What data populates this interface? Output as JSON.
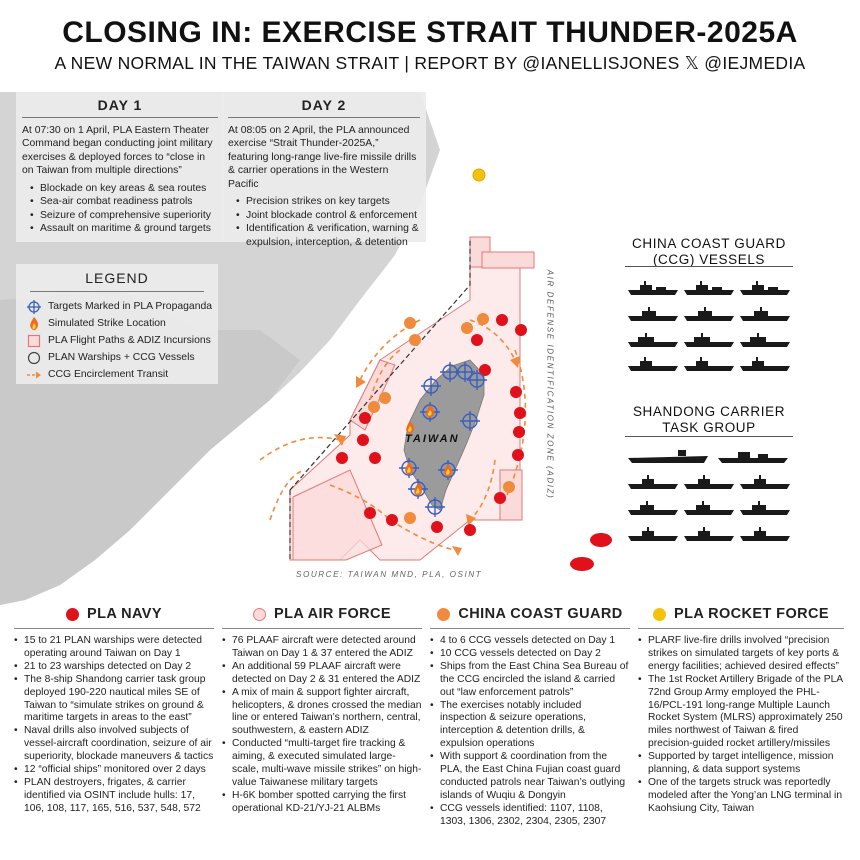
{
  "header": {
    "title": "CLOSING IN: EXERCISE STRAIT THUNDER-2025A",
    "subtitle": "A NEW NORMAL IN THE TAIWAN STRAIT | REPORT BY @IANELLISJONES 𝕏 @IEJMEDIA"
  },
  "day1": {
    "heading": "DAY 1",
    "text": "At 07:30 on 1 April, PLA Eastern Theater Command began conducting joint military exercises & deployed forces to “close in on Taiwan from multiple directions”",
    "bullets": [
      "Blockade on key areas & sea routes",
      "Sea-air combat readiness patrols",
      "Seizure of comprehensive superiority",
      "Assault on maritime & ground targets"
    ]
  },
  "day2": {
    "heading": "DAY 2",
    "text": "At 08:05 on 2 April, the PLA announced exercise “Strait Thunder-2025A,” featuring long-range live-fire missile drills & carrier operations in the Western Pacific",
    "bullets": [
      "Precision strikes on key targets",
      "Joint blockade control & enforcement",
      "Identification & verification, warning & expulsion, interception, & detention"
    ]
  },
  "legend": {
    "heading": "LEGEND",
    "items": [
      {
        "icon": "crosshair-icon",
        "label": "Targets Marked in PLA Propaganda"
      },
      {
        "icon": "flame-icon",
        "label": "Simulated Strike Location"
      },
      {
        "icon": "square-icon",
        "label": "PLA Flight Paths & ADIZ Incursions"
      },
      {
        "icon": "circle-icon",
        "label": "PLAN Warships + CCG Vessels"
      },
      {
        "icon": "dashed-arrow-icon",
        "label": "CCG Encirclement Transit"
      }
    ]
  },
  "map": {
    "island_label": "TAIWAN",
    "adiz_label": "AIR DEFENSE IDENTIFICATION ZONE (ADIZ)",
    "source": "SOURCE: TAIWAN MND, PLA, OSINT"
  },
  "ccg_panel": {
    "heading_line1": "CHINA COAST GUARD",
    "heading_line2": "(CCG) VESSELS"
  },
  "shandong_panel": {
    "heading_line1": "SHANDONG CARRIER",
    "heading_line2": "TASK GROUP"
  },
  "colors": {
    "navy": "#e0111b",
    "air_force_fill": "#fbdada",
    "air_force_stroke": "#e07a7a",
    "coast_guard": "#f08a3c",
    "rocket_force": "#f4c20d",
    "target_blue": "#3b5fbf"
  },
  "columns": [
    {
      "heading": "PLA NAVY",
      "bullets": [
        "15 to 21 PLAN warships were detected operating around Taiwan on Day 1",
        "21 to 23 warships detected on Day 2",
        "The 8-ship Shandong carrier task group deployed 190-220 nautical miles SE of Taiwan to “simulate strikes on ground & maritime targets in areas to the east”",
        "Naval drills also involved subjects of vessel-aircraft coordination, seizure of air superiority, blockade maneuvers & tactics",
        "12 “official ships” monitored over 2 days",
        "PLAN destroyers, frigates, & carrier identified via OSINT include hulls: 17, 106, 108, 117, 165, 516, 537, 548, 572"
      ]
    },
    {
      "heading": "PLA AIR FORCE",
      "bullets": [
        "76 PLAAF aircraft were detected around Taiwan on Day 1 & 37 entered the ADIZ",
        "An additional 59 PLAAF aircraft were detected on Day 2 & 31 entered the ADIZ",
        "A mix of main & support fighter aircraft, helicopters, & drones crossed the median line or entered Taiwan’s northern, central, southwestern, & eastern ADIZ",
        "Conducted “multi-target fire tracking & aiming, & executed simulated large-scale, multi-wave missile strikes” on high-value Taiwanese military targets",
        "H-6K bomber spotted carrying the first operational KD-21/YJ-21 ALBMs"
      ]
    },
    {
      "heading": "CHINA COAST GUARD",
      "bullets": [
        "4 to 6 CCG vessels detected on Day 1",
        "10 CCG vessels detected on Day 2",
        "Ships from the East China Sea Bureau of the CCG encircled the island & carried out “law enforcement patrols”",
        "The exercises notably included inspection & seizure operations, interception & detention drills, & expulsion operations",
        "With support & coordination from the PLA, the East China Fujian coast guard conducted patrols near Taiwan’s outlying islands of Wuqiu & Dongyin",
        "CCG vessels identified: 1107, 1108, 1303, 1306, 2302, 2304, 2305, 2307"
      ]
    },
    {
      "heading": "PLA ROCKET FORCE",
      "bullets": [
        "PLARF live-fire drills involved “precision strikes on simulated targets of key ports & energy facilities; achieved desired effects”",
        "The 1st Rocket Artillery Brigade of the PLA 72nd Group Army employed the PHL-16/PCL-191 long-range Multiple Launch Rocket System (MLRS) approximately 250 miles northwest of Taiwan & fired precision-guided rocket artillery/missiles",
        "Supported by target intelligence, mission planning, & data support systems",
        "One of the targets struck was reportedly modeled after the Yong’an LNG terminal in Kaohsiung City, Taiwan"
      ]
    }
  ]
}
